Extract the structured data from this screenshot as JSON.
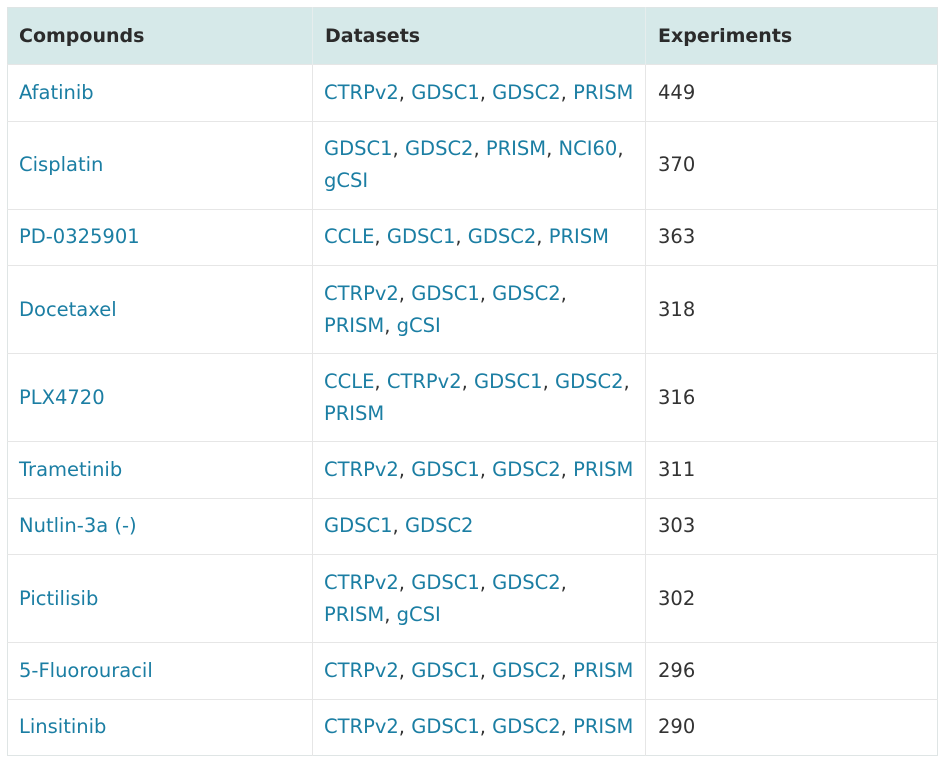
{
  "table": {
    "headers": {
      "compounds": "Compounds",
      "datasets": "Datasets",
      "experiments": "Experiments"
    },
    "rows": [
      {
        "compound": "Afatinib",
        "datasets": [
          "CTRPv2",
          "GDSC1",
          "GDSC2",
          "PRISM"
        ],
        "experiments": "449"
      },
      {
        "compound": "Cisplatin",
        "datasets": [
          "GDSC1",
          "GDSC2",
          "PRISM",
          "NCI60",
          "gCSI"
        ],
        "experiments": "370"
      },
      {
        "compound": "PD-0325901",
        "datasets": [
          "CCLE",
          "GDSC1",
          "GDSC2",
          "PRISM"
        ],
        "experiments": "363"
      },
      {
        "compound": "Docetaxel",
        "datasets": [
          "CTRPv2",
          "GDSC1",
          "GDSC2",
          "PRISM",
          "gCSI"
        ],
        "experiments": "318"
      },
      {
        "compound": "PLX4720",
        "datasets": [
          "CCLE",
          "CTRPv2",
          "GDSC1",
          "GDSC2",
          "PRISM"
        ],
        "experiments": "316"
      },
      {
        "compound": "Trametinib",
        "datasets": [
          "CTRPv2",
          "GDSC1",
          "GDSC2",
          "PRISM"
        ],
        "experiments": "311"
      },
      {
        "compound": "Nutlin-3a (-)",
        "datasets": [
          "GDSC1",
          "GDSC2"
        ],
        "experiments": "303"
      },
      {
        "compound": "Pictilisib",
        "datasets": [
          "CTRPv2",
          "GDSC1",
          "GDSC2",
          "PRISM",
          "gCSI"
        ],
        "experiments": "302"
      },
      {
        "compound": "5-Fluorouracil",
        "datasets": [
          "CTRPv2",
          "GDSC1",
          "GDSC2",
          "PRISM"
        ],
        "experiments": "296"
      },
      {
        "compound": "Linsitinib",
        "datasets": [
          "CTRPv2",
          "GDSC1",
          "GDSC2",
          "PRISM"
        ],
        "experiments": "290"
      }
    ]
  }
}
